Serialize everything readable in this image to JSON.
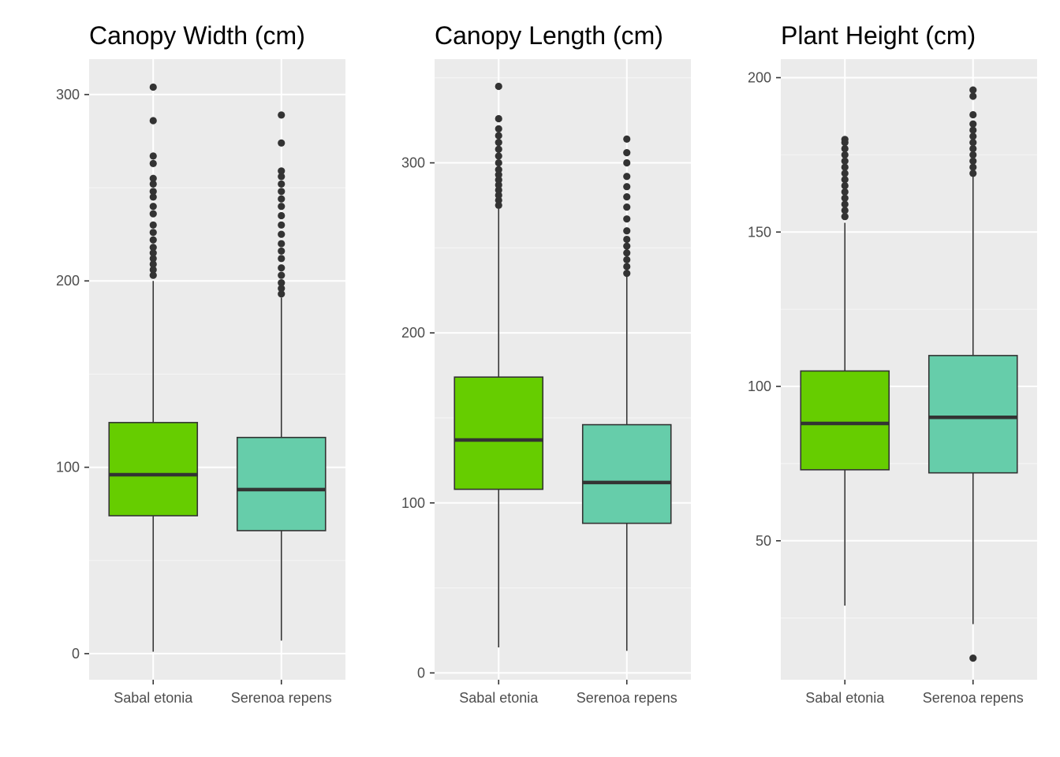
{
  "colors": {
    "panel_background": "#ebebeb",
    "grid_major": "#ffffff",
    "grid_minor": "#f5f5f5",
    "box_outline": "#333333",
    "tick_text": "#4d4d4d",
    "series": {
      "Sabal etonia": "#66cd00",
      "Serenoa repens": "#66cdaa"
    }
  },
  "chart_data": [
    {
      "type": "boxplot",
      "title": "Canopy Width (cm)",
      "xlabel": "",
      "ylabel": "",
      "categories": [
        "Sabal etonia",
        "Serenoa repens"
      ],
      "ylim": [
        -14,
        319
      ],
      "y_ticks": [
        0,
        100,
        200,
        300
      ],
      "y_tick_labels": [
        "0",
        "100",
        "200",
        "300"
      ],
      "grid": true,
      "legend": "none",
      "boxes": [
        {
          "category": "Sabal etonia",
          "whisker_low": 1,
          "q1": 74,
          "median": 96,
          "q3": 124,
          "whisker_high": 200,
          "outliers": [
            203,
            206,
            209,
            212,
            215,
            218,
            222,
            226,
            230,
            236,
            240,
            245,
            248,
            252,
            255,
            263,
            267,
            286,
            304
          ]
        },
        {
          "category": "Serenoa repens",
          "whisker_low": 7,
          "q1": 66,
          "median": 88,
          "q3": 116,
          "whisker_high": 191,
          "outliers": [
            193,
            196,
            199,
            203,
            207,
            212,
            216,
            220,
            225,
            230,
            235,
            240,
            244,
            248,
            252,
            256,
            259,
            274,
            289
          ]
        }
      ]
    },
    {
      "type": "boxplot",
      "title": "Canopy Length (cm)",
      "xlabel": "",
      "ylabel": "",
      "categories": [
        "Sabal etonia",
        "Serenoa repens"
      ],
      "ylim": [
        -4,
        361
      ],
      "y_ticks": [
        0,
        100,
        200,
        300
      ],
      "y_tick_labels": [
        "0",
        "100",
        "200",
        "300"
      ],
      "grid": true,
      "legend": "none",
      "boxes": [
        {
          "category": "Sabal etonia",
          "whisker_low": 15,
          "q1": 108,
          "median": 137,
          "q3": 174,
          "whisker_high": 273,
          "outliers": [
            275,
            278,
            281,
            284,
            287,
            290,
            293,
            296,
            300,
            304,
            308,
            312,
            316,
            320,
            326,
            345
          ]
        },
        {
          "category": "Serenoa repens",
          "whisker_low": 13,
          "q1": 88,
          "median": 112,
          "q3": 146,
          "whisker_high": 233,
          "outliers": [
            235,
            239,
            243,
            247,
            251,
            255,
            260,
            267,
            274,
            280,
            286,
            292,
            300,
            306,
            314
          ]
        }
      ]
    },
    {
      "type": "boxplot",
      "title": "Plant Height (cm)",
      "xlabel": "",
      "ylabel": "",
      "categories": [
        "Sabal etonia",
        "Serenoa repens"
      ],
      "ylim": [
        5,
        206
      ],
      "y_ticks": [
        50,
        100,
        150,
        200
      ],
      "y_tick_labels": [
        "50",
        "100",
        "150",
        "200"
      ],
      "grid": true,
      "legend": "none",
      "boxes": [
        {
          "category": "Sabal etonia",
          "whisker_low": 29,
          "q1": 73,
          "median": 88,
          "q3": 105,
          "whisker_high": 153,
          "outliers": [
            155,
            157,
            159,
            161,
            163,
            165,
            167,
            169,
            171,
            173,
            175,
            177,
            179,
            180
          ]
        },
        {
          "category": "Serenoa repens",
          "whisker_low": 23,
          "q1": 72,
          "median": 90,
          "q3": 110,
          "whisker_high": 168,
          "outliers": [
            12,
            169,
            171,
            173,
            175,
            177,
            179,
            181,
            183,
            185,
            188,
            194,
            196
          ]
        }
      ]
    }
  ]
}
